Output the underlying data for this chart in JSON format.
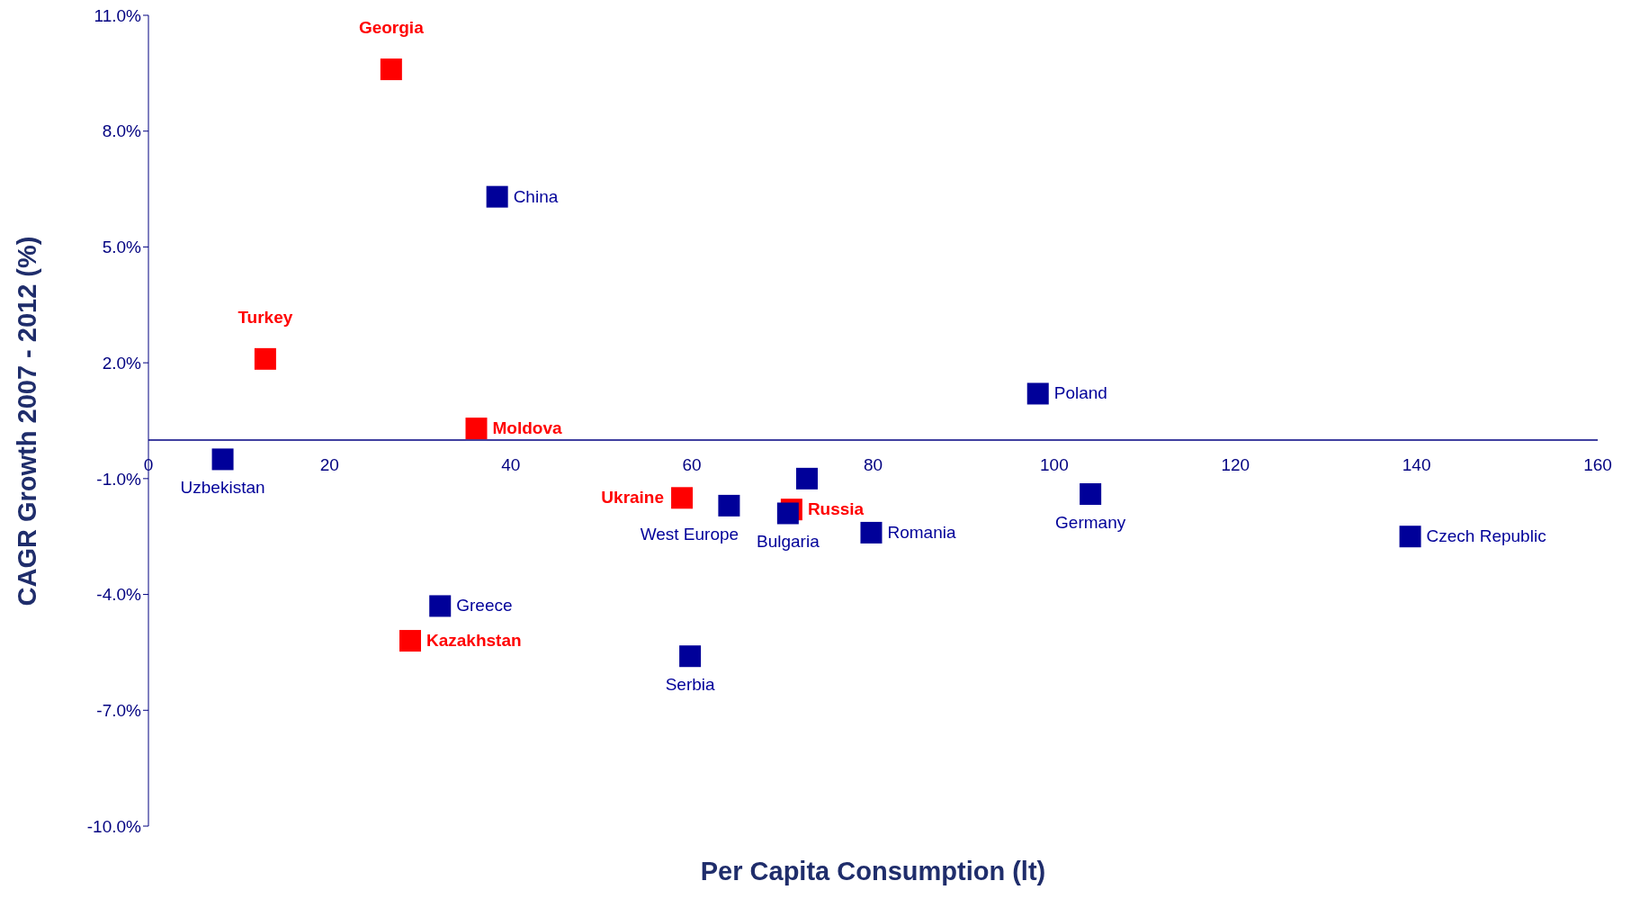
{
  "chart_data": {
    "type": "scatter",
    "xlabel": "Per Capita Consumption (lt)",
    "ylabel": "CAGR Growth 2007 - 2012 (%)",
    "marker": "square",
    "xlim": [
      0,
      160
    ],
    "xticks": [
      0,
      20,
      40,
      60,
      80,
      100,
      120,
      140,
      160
    ],
    "ylim": [
      -10,
      11
    ],
    "yticks": [
      {
        "value": -10,
        "label": "-10.0%"
      },
      {
        "value": -7,
        "label": "-7.0%"
      },
      {
        "value": -4,
        "label": "-4.0%"
      },
      {
        "value": -1,
        "label": "-1.0%"
      },
      {
        "value": 2,
        "label": "2.0%"
      },
      {
        "value": 5,
        "label": "5.0%"
      },
      {
        "value": 8,
        "label": "8.0%"
      },
      {
        "value": 11,
        "label": "11.0%"
      }
    ],
    "series": [
      {
        "color": "#ff0000",
        "x": [
          26.8,
          12.9,
          36.2,
          58.9,
          71.0,
          28.9
        ],
        "values": [
          9.6,
          2.1,
          0.3,
          -1.5,
          -1.8,
          -5.2
        ],
        "value_labels": [
          "Georgia",
          "Turkey",
          "Moldova",
          "Ukraine",
          "Russia",
          "Kazakhstan"
        ]
      },
      {
        "color": "#000099",
        "x": [
          38.5,
          98.2,
          8.2,
          72.7,
          64.1,
          70.6,
          104.0,
          79.8,
          139.3,
          32.2,
          59.8
        ],
        "values": [
          6.3,
          1.2,
          -0.5,
          -1.0,
          -1.7,
          -1.9,
          -1.4,
          -2.4,
          -2.5,
          -4.3,
          -5.6
        ],
        "value_labels": [
          "China",
          "Poland",
          "Uzbekistan",
          null,
          "West Europe",
          "Bulgaria",
          "Germany",
          "Romania",
          "Czech Republic",
          "Greece",
          "Serbia"
        ]
      }
    ]
  }
}
